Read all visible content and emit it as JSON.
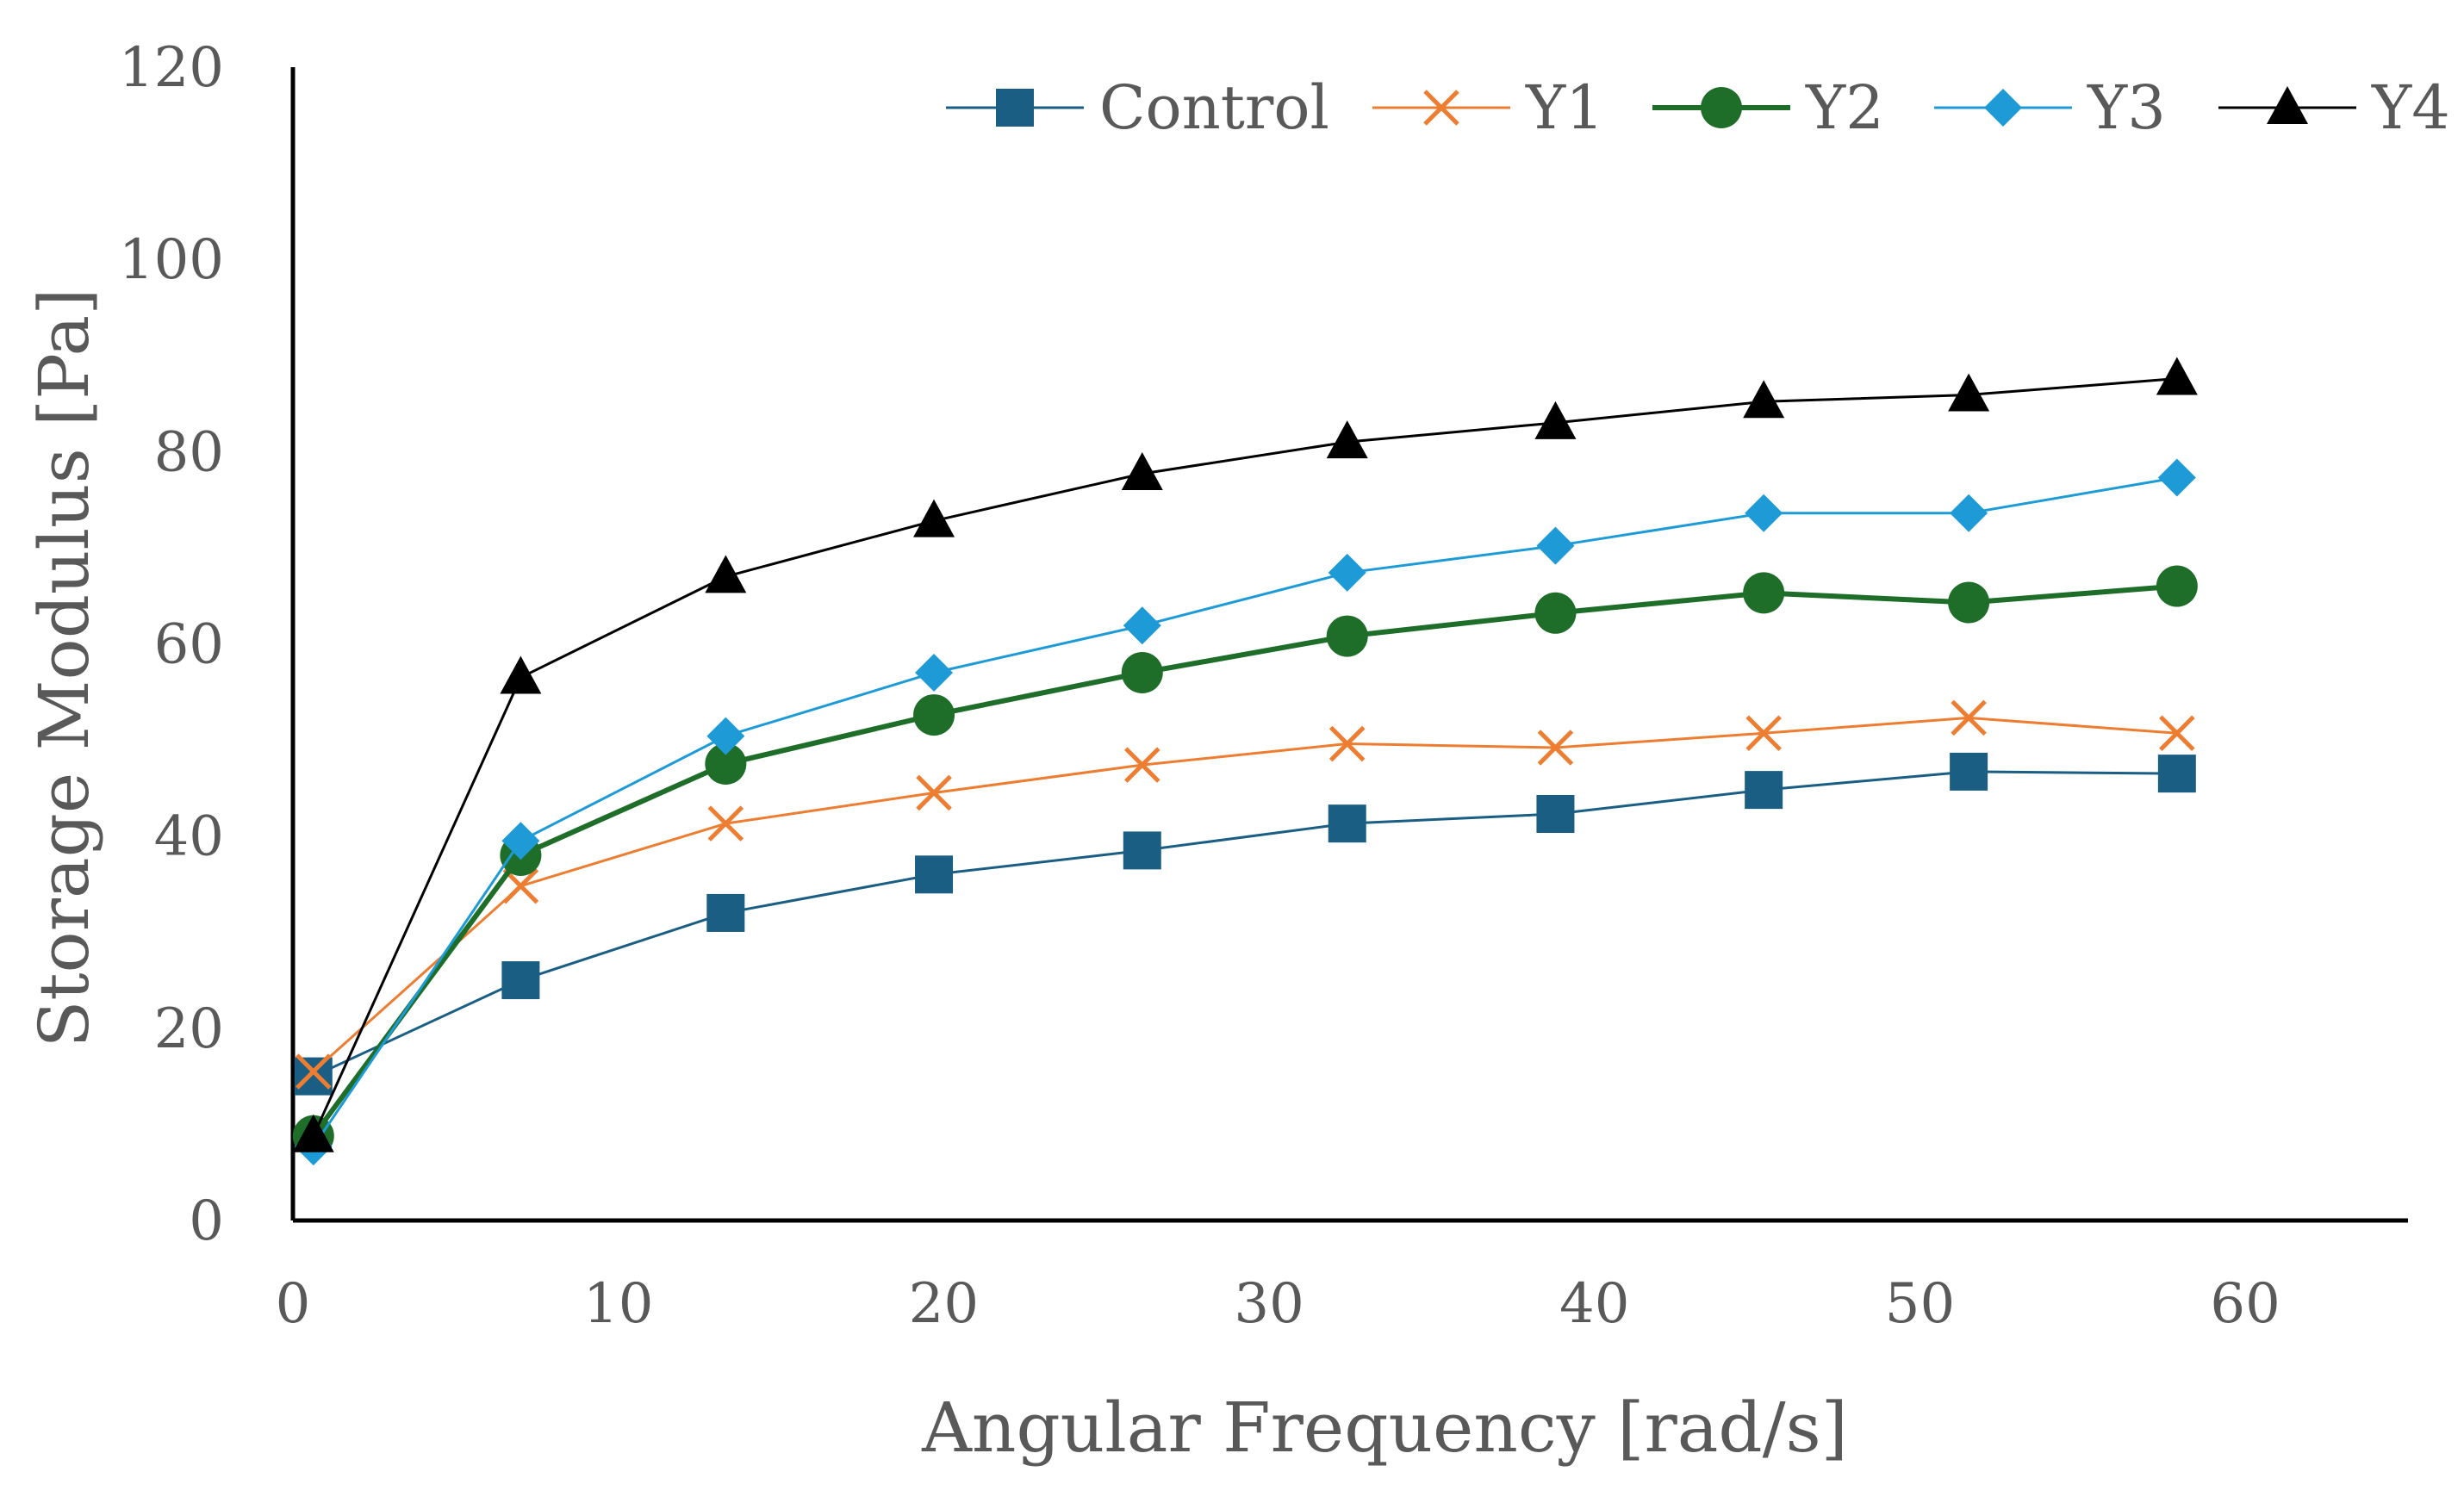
{
  "chart_data": {
    "type": "line",
    "xlabel": "Angular Frequency [rad/s]",
    "ylabel": "Storage Modulus [Pa]",
    "xlim": [
      0,
      65
    ],
    "ylim": [
      0,
      120
    ],
    "xticks": [
      0,
      10,
      20,
      30,
      40,
      50,
      60
    ],
    "yticks": [
      0,
      20,
      40,
      60,
      80,
      100,
      120
    ],
    "x": [
      0.63,
      7.0,
      13.3,
      19.7,
      26.1,
      32.4,
      38.8,
      45.2,
      51.5,
      57.9
    ],
    "legend_position": "top",
    "series": [
      {
        "name": "Control",
        "color": "#1B5E84",
        "marker": "square",
        "line_width": 3,
        "values": [
          15.0,
          25.0,
          32.0,
          36.0,
          38.5,
          41.3,
          42.3,
          44.8,
          46.7,
          46.5
        ]
      },
      {
        "name": "Y1",
        "color": "#ED7D31",
        "marker": "x",
        "line_width": 3,
        "values": [
          15.5,
          34.8,
          41.3,
          44.5,
          47.4,
          49.6,
          49.2,
          50.7,
          52.3,
          50.7
        ]
      },
      {
        "name": "Y2",
        "color": "#1E6E2A",
        "marker": "circle",
        "line_width": 6,
        "values": [
          8.8,
          38.0,
          47.5,
          52.6,
          57.0,
          60.8,
          63.2,
          65.3,
          64.3,
          66.0
        ]
      },
      {
        "name": "Y3",
        "color": "#1E9BD7",
        "marker": "diamond",
        "line_width": 3,
        "values": [
          7.7,
          39.5,
          50.4,
          57.0,
          61.9,
          67.4,
          70.2,
          73.6,
          73.6,
          77.3
        ]
      },
      {
        "name": "Y4",
        "color": "#000000",
        "marker": "triangle",
        "line_width": 3,
        "values": [
          8.8,
          56.5,
          67.0,
          72.8,
          77.7,
          81.0,
          83.0,
          85.2,
          85.9,
          87.6
        ]
      }
    ]
  }
}
